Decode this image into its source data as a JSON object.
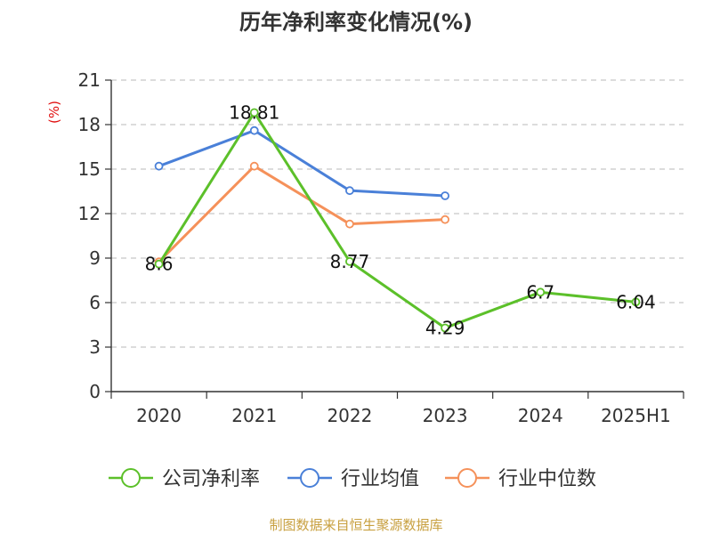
{
  "title": "历年净利率变化情况(%)",
  "source": "制图数据来自恒生聚源数据库",
  "colors": {
    "company": "#5cc02a",
    "industry_avg": "#4a80d8",
    "industry_median": "#f5915a",
    "grid": "#c8c8c8",
    "axis": "#333333"
  },
  "chart_data": {
    "type": "line",
    "title": "历年净利率变化情况(%)",
    "ylabel": "(%)",
    "xlabel": "",
    "ylim": [
      0,
      21
    ],
    "yticks": [
      0,
      3,
      6,
      9,
      12,
      15,
      18,
      21
    ],
    "categories": [
      "2020",
      "2021",
      "2022",
      "2023",
      "2024",
      "2025H1"
    ],
    "grid": "horizontal dashed",
    "legend_position": "bottom",
    "series": [
      {
        "name": "公司净利率",
        "color": "#5cc02a",
        "values": [
          8.6,
          18.81,
          8.77,
          4.29,
          6.7,
          6.04
        ],
        "labels": [
          "8.6",
          "18.81",
          "8.77",
          "4.29",
          "6.7",
          "6.04"
        ]
      },
      {
        "name": "行业均值",
        "color": "#4a80d8",
        "values": [
          15.2,
          17.6,
          13.55,
          13.2,
          null,
          null
        ]
      },
      {
        "name": "行业中位数",
        "color": "#f5915a",
        "values": [
          8.75,
          15.2,
          11.3,
          11.6,
          null,
          null
        ]
      }
    ]
  }
}
